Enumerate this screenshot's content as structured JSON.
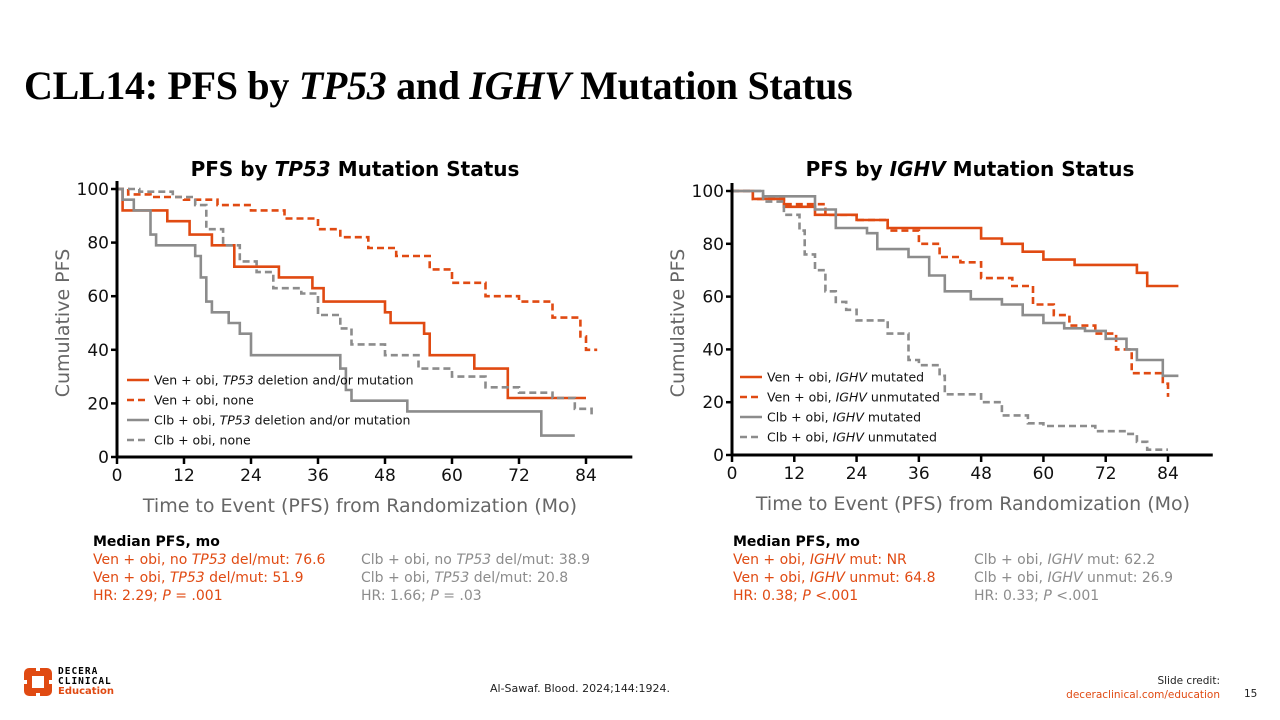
{
  "slide": {
    "title_parts": [
      {
        "text": "CLL14: PFS by ",
        "italic": false
      },
      {
        "text": "TP53",
        "italic": true
      },
      {
        "text": " and ",
        "italic": false
      },
      {
        "text": "IGHV",
        "italic": true
      },
      {
        "text": " Mutation Status",
        "italic": false
      }
    ],
    "citation": "Al-Sawaf. Blood. 2024;144:1924.",
    "credit_label": "Slide credit:",
    "credit_link": "deceraclinical.com/education",
    "page_number": "15",
    "logo": {
      "line1": "DECERA",
      "line2": "CLINICAL",
      "line3": "Education"
    }
  },
  "colors": {
    "ven": "#E04A12",
    "clb": "#8C8C8C"
  },
  "chart_data": [
    {
      "type": "line",
      "subtype": "kaplan-meier",
      "title_parts": [
        {
          "text": "PFS by ",
          "italic": false
        },
        {
          "text": "TP53",
          "italic": true
        },
        {
          "text": " Mutation Status",
          "italic": false
        }
      ],
      "xlabel": "Time to Event (PFS) from Randomization (Mo)",
      "ylabel": "Cumulative PFS",
      "xlim": [
        0,
        88
      ],
      "ylim": [
        0,
        100
      ],
      "xticks": [
        0,
        12,
        24,
        36,
        48,
        60,
        72,
        84
      ],
      "yticks": [
        0,
        20,
        40,
        60,
        80,
        100
      ],
      "legend_position": "bottom-left",
      "series": [
        {
          "name": "Ven + obi, TP53 deletion and/or mutation",
          "name_parts": [
            {
              "text": "Ven + obi, ",
              "italic": false
            },
            {
              "text": "TP53",
              "italic": true
            },
            {
              "text": " deletion and/or mutation",
              "italic": false
            }
          ],
          "color_key": "ven",
          "dashed": false,
          "x": [
            0,
            1,
            9,
            13,
            17,
            21,
            29,
            35,
            37,
            48,
            49,
            55,
            56,
            64,
            70,
            84
          ],
          "y": [
            100,
            92,
            88,
            83,
            79,
            71,
            67,
            63,
            58,
            54,
            50,
            46,
            38,
            33,
            22,
            22
          ]
        },
        {
          "name": "Ven + obi, none",
          "name_parts": [
            {
              "text": "Ven + obi, none",
              "italic": false
            }
          ],
          "color_key": "ven",
          "dashed": true,
          "x": [
            0,
            2,
            6,
            12,
            18,
            24,
            30,
            36,
            40,
            45,
            50,
            56,
            60,
            66,
            72,
            78,
            83,
            84,
            86
          ],
          "y": [
            100,
            98,
            97,
            96,
            94,
            92,
            89,
            85,
            82,
            78,
            75,
            70,
            65,
            60,
            58,
            52,
            45,
            40,
            40
          ]
        },
        {
          "name": "Clb + obi, TP53 deletion and/or mutation",
          "name_parts": [
            {
              "text": "Clb + obi, ",
              "italic": false
            },
            {
              "text": "TP53",
              "italic": true
            },
            {
              "text": " deletion and/or mutation",
              "italic": false
            }
          ],
          "color_key": "clb",
          "dashed": true,
          "solid": true,
          "x": [
            0,
            1,
            3,
            6,
            7,
            14,
            15,
            16,
            17,
            20,
            22,
            24,
            40,
            41,
            42,
            52,
            76,
            82
          ],
          "y": [
            100,
            96,
            92,
            83,
            79,
            75,
            67,
            58,
            54,
            50,
            46,
            38,
            33,
            25,
            21,
            17,
            8,
            8
          ]
        },
        {
          "name": "Clb + obi, none",
          "name_parts": [
            {
              "text": "Clb + obi, none",
              "italic": false
            }
          ],
          "color_key": "clb",
          "dashed": true,
          "x": [
            0,
            4,
            10,
            14,
            16,
            19,
            22,
            25,
            28,
            33,
            36,
            40,
            42,
            48,
            54,
            60,
            66,
            72,
            78,
            82,
            85
          ],
          "y": [
            100,
            99,
            97,
            94,
            85,
            79,
            73,
            69,
            63,
            61,
            53,
            48,
            42,
            38,
            33,
            30,
            26,
            24,
            22,
            18,
            15
          ]
        }
      ]
    },
    {
      "type": "line",
      "subtype": "kaplan-meier",
      "title_parts": [
        {
          "text": "PFS by ",
          "italic": false
        },
        {
          "text": "IGHV",
          "italic": true
        },
        {
          "text": " Mutation Status",
          "italic": false
        }
      ],
      "xlabel": "Time to Event (PFS) from Randomization (Mo)",
      "ylabel": "Cumulative PFS",
      "xlim": [
        0,
        88
      ],
      "ylim": [
        0,
        100
      ],
      "xticks": [
        0,
        12,
        24,
        36,
        48,
        60,
        72,
        84
      ],
      "yticks": [
        0,
        20,
        40,
        60,
        80,
        100
      ],
      "legend_position": "bottom-left",
      "series": [
        {
          "name": "Ven + obi, IGHV mutated",
          "name_parts": [
            {
              "text": "Ven + obi, ",
              "italic": false
            },
            {
              "text": "IGHV",
              "italic": true
            },
            {
              "text": " mutated",
              "italic": false
            }
          ],
          "color_key": "ven",
          "dashed": false,
          "x": [
            0,
            4,
            10,
            16,
            24,
            30,
            45,
            48,
            52,
            56,
            60,
            66,
            72,
            78,
            80,
            86
          ],
          "y": [
            100,
            97,
            94,
            91,
            89,
            86,
            86,
            82,
            80,
            77,
            74,
            72,
            72,
            69,
            64,
            64
          ]
        },
        {
          "name": "Ven + obi, IGHV unmutated",
          "name_parts": [
            {
              "text": "Ven + obi, ",
              "italic": false
            },
            {
              "text": "IGHV",
              "italic": true
            },
            {
              "text": " unmutated",
              "italic": false
            }
          ],
          "color_key": "ven",
          "dashed": true,
          "x": [
            0,
            4,
            10,
            18,
            24,
            30,
            36,
            40,
            44,
            48,
            54,
            58,
            62,
            65,
            70,
            74,
            77,
            82,
            83,
            84
          ],
          "y": [
            100,
            97,
            95,
            91,
            89,
            85,
            80,
            75,
            73,
            67,
            64,
            57,
            53,
            49,
            46,
            40,
            31,
            31,
            27,
            22
          ]
        },
        {
          "name": "Clb + obi, IGHV mutated",
          "name_parts": [
            {
              "text": "Clb + obi, ",
              "italic": false
            },
            {
              "text": "IGHV",
              "italic": true
            },
            {
              "text": " mutated",
              "italic": false
            }
          ],
          "color_key": "clb",
          "dashed": false,
          "x": [
            0,
            6,
            14,
            16,
            20,
            26,
            28,
            34,
            38,
            41,
            46,
            52,
            56,
            60,
            64,
            68,
            72,
            76,
            78,
            83,
            86
          ],
          "y": [
            100,
            98,
            98,
            93,
            86,
            84,
            78,
            75,
            68,
            62,
            59,
            57,
            53,
            50,
            48,
            47,
            44,
            40,
            36,
            30,
            30
          ]
        },
        {
          "name": "Clb + obi, IGHV unmutated",
          "name_parts": [
            {
              "text": "Clb + obi, ",
              "italic": false
            },
            {
              "text": "IGHV",
              "italic": true
            },
            {
              "text": " unmutated",
              "italic": false
            }
          ],
          "color_key": "clb",
          "dashed": true,
          "x": [
            0,
            6,
            10,
            13,
            14,
            16,
            18,
            20,
            22,
            24,
            30,
            34,
            36,
            40,
            41,
            48,
            52,
            57,
            60,
            70,
            76,
            78,
            80,
            84
          ],
          "y": [
            100,
            96,
            91,
            85,
            76,
            70,
            62,
            58,
            55,
            51,
            46,
            36,
            34,
            30,
            23,
            20,
            15,
            12,
            11,
            9,
            8,
            5,
            2,
            2
          ]
        }
      ]
    }
  ],
  "medians": [
    {
      "heading": "Median PFS, mo",
      "ven_lines": [
        [
          {
            "text": "Ven + obi, no ",
            "italic": false
          },
          {
            "text": "TP53",
            "italic": true
          },
          {
            "text": " del/mut: 76.6",
            "italic": false
          }
        ],
        [
          {
            "text": "Ven + obi, ",
            "italic": false
          },
          {
            "text": "TP53",
            "italic": true
          },
          {
            "text": " del/mut: 51.9",
            "italic": false
          }
        ],
        [
          {
            "text": "HR: 2.29; ",
            "italic": false
          },
          {
            "text": "P",
            "italic": true
          },
          {
            "text": " = .001",
            "italic": false
          }
        ]
      ],
      "clb_lines": [
        [
          {
            "text": "Clb + obi, no ",
            "italic": false
          },
          {
            "text": "TP53",
            "italic": true
          },
          {
            "text": " del/mut: 38.9",
            "italic": false
          }
        ],
        [
          {
            "text": "Clb + obi, ",
            "italic": false
          },
          {
            "text": "TP53",
            "italic": true
          },
          {
            "text": " del/mut: 20.8",
            "italic": false
          }
        ],
        [
          {
            "text": "HR: 1.66; ",
            "italic": false
          },
          {
            "text": "P",
            "italic": true
          },
          {
            "text": " = .03",
            "italic": false
          }
        ]
      ]
    },
    {
      "heading": "Median PFS, mo",
      "ven_lines": [
        [
          {
            "text": "Ven + obi, ",
            "italic": false
          },
          {
            "text": "IGHV",
            "italic": true
          },
          {
            "text": " mut: NR",
            "italic": false
          }
        ],
        [
          {
            "text": "Ven + obi, ",
            "italic": false
          },
          {
            "text": "IGHV",
            "italic": true
          },
          {
            "text": " unmut: 64.8",
            "italic": false
          }
        ],
        [
          {
            "text": "HR: 0.38; ",
            "italic": false
          },
          {
            "text": "P",
            "italic": true
          },
          {
            "text": " <.001",
            "italic": false
          }
        ]
      ],
      "clb_lines": [
        [
          {
            "text": "Clb + obi, ",
            "italic": false
          },
          {
            "text": "IGHV",
            "italic": true
          },
          {
            "text": " mut: 62.2",
            "italic": false
          }
        ],
        [
          {
            "text": "Clb + obi, ",
            "italic": false
          },
          {
            "text": "IGHV",
            "italic": true
          },
          {
            "text": " unmut: 26.9",
            "italic": false
          }
        ],
        [
          {
            "text": "HR: 0.33; ",
            "italic": false
          },
          {
            "text": "P",
            "italic": true
          },
          {
            "text": " <.001",
            "italic": false
          }
        ]
      ]
    }
  ]
}
